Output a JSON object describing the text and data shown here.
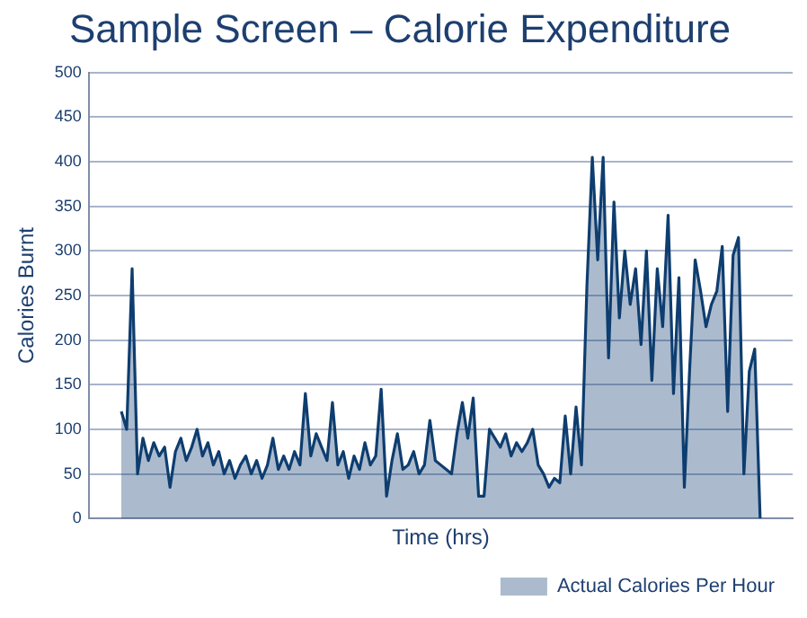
{
  "chart_data": {
    "type": "area",
    "title": "Sample Screen – Calorie Expenditure",
    "xlabel": "Time (hrs)",
    "ylabel": "Calories Burnt",
    "categories": [
      null,
      null,
      null,
      null,
      null,
      null,
      null,
      null,
      null,
      null,
      null,
      null,
      null,
      null,
      null,
      null,
      null,
      null,
      null,
      null,
      null,
      null,
      null,
      null,
      null,
      null,
      null,
      null,
      null,
      null,
      null,
      null,
      null,
      null,
      null,
      null,
      null,
      null,
      null,
      null,
      null,
      null,
      null,
      null,
      null,
      null,
      null,
      null,
      null,
      null,
      null,
      null,
      null,
      null,
      null,
      null,
      null,
      null,
      null,
      null,
      null,
      null,
      null,
      null,
      null,
      null,
      null,
      null,
      null,
      null,
      null,
      null,
      null,
      null,
      null,
      null,
      null,
      null,
      null,
      null,
      null,
      null,
      null,
      null,
      null,
      null,
      null,
      null,
      null,
      null,
      null,
      null,
      null,
      null,
      null,
      null,
      null,
      null,
      null,
      null,
      null,
      null,
      null,
      null,
      null,
      null,
      null,
      null,
      null,
      null,
      null,
      null,
      null,
      null,
      null,
      null,
      null,
      null,
      null,
      null,
      null,
      null,
      null,
      null,
      null,
      null,
      null,
      null,
      null,
      null,
      null
    ],
    "series": [
      {
        "name": "Actual Calories Per Hour",
        "color": "#0e3d6f",
        "values": [
          null,
          null,
          null,
          null,
          null,
          null,
          120,
          100,
          280,
          50,
          90,
          65,
          85,
          70,
          80,
          35,
          75,
          90,
          65,
          80,
          100,
          70,
          85,
          60,
          75,
          50,
          65,
          45,
          60,
          70,
          50,
          65,
          45,
          60,
          90,
          55,
          70,
          55,
          75,
          60,
          140,
          70,
          95,
          80,
          65,
          130,
          60,
          75,
          45,
          70,
          55,
          85,
          60,
          70,
          145,
          25,
          65,
          95,
          55,
          60,
          75,
          50,
          60,
          110,
          65,
          60,
          55,
          50,
          95,
          130,
          90,
          135,
          25,
          25,
          100,
          90,
          80,
          95,
          70,
          85,
          75,
          85,
          100,
          60,
          50,
          35,
          45,
          40,
          115,
          50,
          125,
          60,
          260,
          405,
          290,
          405,
          180,
          355,
          225,
          300,
          240,
          280,
          195,
          300,
          155,
          280,
          215,
          340,
          140,
          270,
          35,
          170,
          290,
          255,
          215,
          240,
          255,
          305,
          120,
          295,
          315,
          50,
          165,
          190,
          0,
          null,
          null,
          null,
          null,
          null,
          null
        ]
      }
    ],
    "ylim": [
      0,
      500
    ],
    "yticks": [
      0,
      50,
      100,
      150,
      200,
      250,
      300,
      350,
      400,
      450,
      500
    ],
    "grid": "y",
    "legend": "bottom right",
    "tick_labels": "y",
    "marker": "none"
  }
}
